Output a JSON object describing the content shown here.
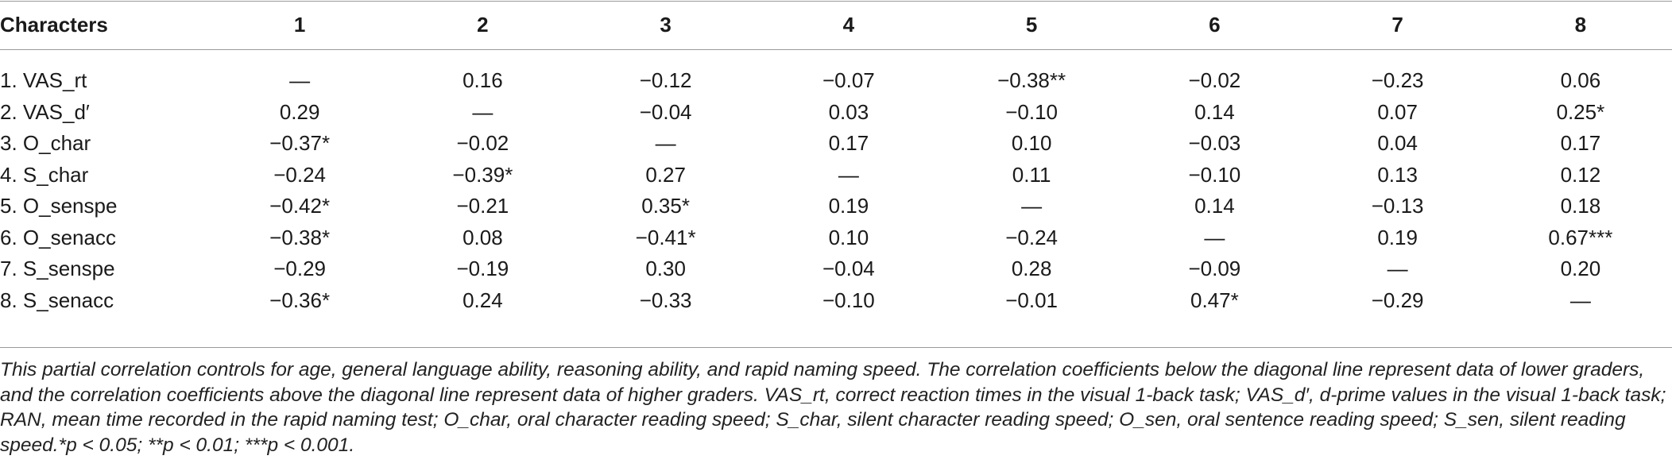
{
  "table": {
    "header": [
      "Characters",
      "1",
      "2",
      "3",
      "4",
      "5",
      "6",
      "7",
      "8"
    ],
    "rows": [
      {
        "label": "1. VAS_rt",
        "values": [
          "—",
          "0.16",
          "−0.12",
          "−0.07",
          "−0.38**",
          "−0.02",
          "−0.23",
          "0.06"
        ]
      },
      {
        "label": "2. VAS_d′",
        "values": [
          "0.29",
          "—",
          "−0.04",
          "0.03",
          "−0.10",
          "0.14",
          "0.07",
          "0.25*"
        ]
      },
      {
        "label": "3. O_char",
        "values": [
          "−0.37*",
          "−0.02",
          "—",
          "0.17",
          "0.10",
          "−0.03",
          "0.04",
          "0.17"
        ]
      },
      {
        "label": "4. S_char",
        "values": [
          "−0.24",
          "−0.39*",
          "0.27",
          "—",
          "0.11",
          "−0.10",
          "0.13",
          "0.12"
        ]
      },
      {
        "label": "5. O_senspe",
        "values": [
          "−0.42*",
          "−0.21",
          "0.35*",
          "0.19",
          "—",
          "0.14",
          "−0.13",
          "0.18"
        ]
      },
      {
        "label": "6. O_senacc",
        "values": [
          "−0.38*",
          "0.08",
          "−0.41*",
          "0.10",
          "−0.24",
          "—",
          "0.19",
          "0.67***"
        ]
      },
      {
        "label": "7. S_senspe",
        "values": [
          "−0.29",
          "−0.19",
          "0.30",
          "−0.04",
          "0.28",
          "−0.09",
          "—",
          "0.20"
        ]
      },
      {
        "label": "8. S_senacc",
        "values": [
          "−0.36*",
          "0.24",
          "−0.33",
          "−0.10",
          "−0.01",
          "0.47*",
          "−0.29",
          "—"
        ]
      }
    ]
  },
  "footnote": "This partial correlation controls for age, general language ability, reasoning ability, and rapid naming speed. The correlation coefficients below the diagonal line represent data of lower graders, and the correlation coefficients above the diagonal line represent data of higher graders. VAS_rt, correct reaction times in the visual 1-back task; VAS_d′, d-prime values in the visual 1-back task; RAN, mean time recorded in the rapid naming test; O_char, oral character reading speed; S_char, silent character reading speed; O_sen, oral sentence reading speed; S_sen, silent reading speed.*p < 0.05; **p < 0.01; ***p < 0.001."
}
